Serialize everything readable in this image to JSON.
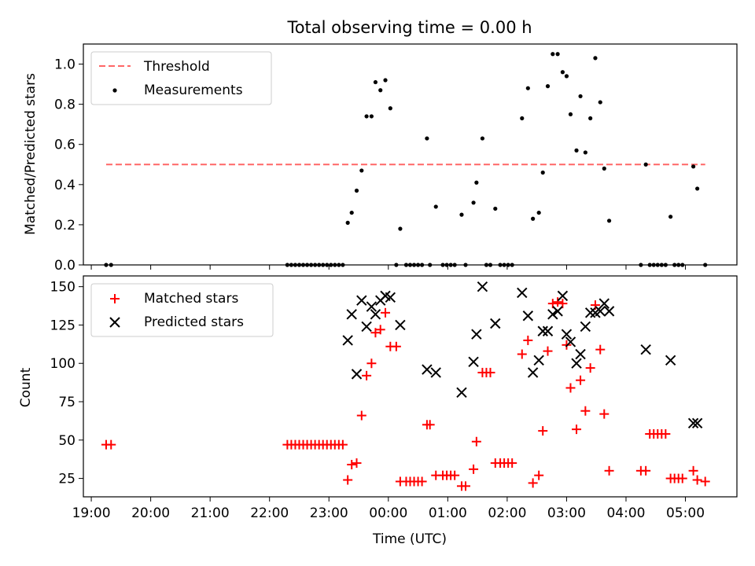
{
  "chart_data": [
    {
      "type": "scatter",
      "title": "Total observing time = 0.00 h",
      "xlabel": "",
      "ylabel": "Matched/Predicted stars",
      "xlim": [
        "18:52",
        "05:52"
      ],
      "ylim": [
        0,
        1.1
      ],
      "yticks": [
        "0.0",
        "0.2",
        "0.4",
        "0.6",
        "0.8",
        "1.0"
      ],
      "legend_position": "top-left",
      "series": [
        {
          "name": "Threshold",
          "kind": "dashed-line",
          "color": "#ff6666",
          "x": [
            "19:15",
            "05:20"
          ],
          "y": [
            0.5,
            0.5
          ]
        },
        {
          "name": "Measurements",
          "kind": "dot",
          "color": "#000000",
          "points": [
            [
              "19:15",
              0.0
            ],
            [
              "19:20",
              0.0
            ],
            [
              "22:18",
              0.0
            ],
            [
              "22:22",
              0.0
            ],
            [
              "22:26",
              0.0
            ],
            [
              "22:30",
              0.0
            ],
            [
              "22:34",
              0.0
            ],
            [
              "22:38",
              0.0
            ],
            [
              "22:42",
              0.0
            ],
            [
              "22:46",
              0.0
            ],
            [
              "22:50",
              0.0
            ],
            [
              "22:54",
              0.0
            ],
            [
              "22:58",
              0.0
            ],
            [
              "23:02",
              0.0
            ],
            [
              "23:06",
              0.0
            ],
            [
              "23:10",
              0.0
            ],
            [
              "23:14",
              0.0
            ],
            [
              "23:19",
              0.21
            ],
            [
              "23:23",
              0.26
            ],
            [
              "23:28",
              0.37
            ],
            [
              "23:33",
              0.47
            ],
            [
              "23:38",
              0.74
            ],
            [
              "23:43",
              0.74
            ],
            [
              "23:47",
              0.91
            ],
            [
              "23:52",
              0.87
            ],
            [
              "23:57",
              0.92
            ],
            [
              "00:02",
              0.78
            ],
            [
              "00:08",
              0.0
            ],
            [
              "00:12",
              0.18
            ],
            [
              "00:18",
              0.0
            ],
            [
              "00:22",
              0.0
            ],
            [
              "00:26",
              0.0
            ],
            [
              "00:30",
              0.0
            ],
            [
              "00:34",
              0.0
            ],
            [
              "00:39",
              0.63
            ],
            [
              "00:42",
              0.0
            ],
            [
              "00:48",
              0.29
            ],
            [
              "00:55",
              0.0
            ],
            [
              "00:59",
              0.0
            ],
            [
              "01:03",
              0.0
            ],
            [
              "01:07",
              0.0
            ],
            [
              "01:14",
              0.25
            ],
            [
              "01:18",
              0.0
            ],
            [
              "01:26",
              0.31
            ],
            [
              "01:29",
              0.41
            ],
            [
              "01:35",
              0.63
            ],
            [
              "01:39",
              0.0
            ],
            [
              "01:43",
              0.0
            ],
            [
              "01:48",
              0.28
            ],
            [
              "01:53",
              0.0
            ],
            [
              "01:57",
              0.0
            ],
            [
              "02:01",
              0.0
            ],
            [
              "02:05",
              0.0
            ],
            [
              "02:15",
              0.73
            ],
            [
              "02:21",
              0.88
            ],
            [
              "02:26",
              0.23
            ],
            [
              "02:32",
              0.26
            ],
            [
              "02:36",
              0.46
            ],
            [
              "02:41",
              0.89
            ],
            [
              "02:46",
              1.05
            ],
            [
              "02:51",
              1.05
            ],
            [
              "02:56",
              0.96
            ],
            [
              "03:00",
              0.94
            ],
            [
              "03:04",
              0.75
            ],
            [
              "03:10",
              0.57
            ],
            [
              "03:14",
              0.84
            ],
            [
              "03:19",
              0.56
            ],
            [
              "03:24",
              0.73
            ],
            [
              "03:29",
              1.03
            ],
            [
              "03:34",
              0.81
            ],
            [
              "03:38",
              0.48
            ],
            [
              "03:43",
              0.22
            ],
            [
              "04:15",
              0.0
            ],
            [
              "04:20",
              0.5
            ],
            [
              "04:24",
              0.0
            ],
            [
              "04:28",
              0.0
            ],
            [
              "04:32",
              0.0
            ],
            [
              "04:36",
              0.0
            ],
            [
              "04:40",
              0.0
            ],
            [
              "04:45",
              0.24
            ],
            [
              "04:49",
              0.0
            ],
            [
              "04:53",
              0.0
            ],
            [
              "04:57",
              0.0
            ],
            [
              "05:08",
              0.49
            ],
            [
              "05:12",
              0.38
            ],
            [
              "05:20",
              0.0
            ]
          ]
        }
      ]
    },
    {
      "type": "scatter",
      "title": "",
      "xlabel": "Time (UTC)",
      "ylabel": "Count",
      "xlim": [
        "18:52",
        "05:52"
      ],
      "ylim": [
        13,
        157
      ],
      "xticks": [
        "19:00",
        "20:00",
        "21:00",
        "22:00",
        "23:00",
        "00:00",
        "01:00",
        "02:00",
        "03:00",
        "04:00",
        "05:00"
      ],
      "yticks": [
        "25",
        "50",
        "75",
        "100",
        "125",
        "150"
      ],
      "legend_position": "top-left",
      "series": [
        {
          "name": "Matched stars",
          "marker": "plus",
          "color": "#ff0000",
          "points": [
            [
              "19:15",
              47
            ],
            [
              "19:20",
              47
            ],
            [
              "22:18",
              47
            ],
            [
              "22:22",
              47
            ],
            [
              "22:26",
              47
            ],
            [
              "22:30",
              47
            ],
            [
              "22:34",
              47
            ],
            [
              "22:38",
              47
            ],
            [
              "22:42",
              47
            ],
            [
              "22:46",
              47
            ],
            [
              "22:50",
              47
            ],
            [
              "22:54",
              47
            ],
            [
              "22:58",
              47
            ],
            [
              "23:02",
              47
            ],
            [
              "23:06",
              47
            ],
            [
              "23:10",
              47
            ],
            [
              "23:14",
              47
            ],
            [
              "23:19",
              24
            ],
            [
              "23:23",
              34
            ],
            [
              "23:28",
              35
            ],
            [
              "23:33",
              66
            ],
            [
              "23:38",
              92
            ],
            [
              "23:43",
              100
            ],
            [
              "23:47",
              120
            ],
            [
              "23:52",
              122
            ],
            [
              "23:57",
              133
            ],
            [
              "00:02",
              111
            ],
            [
              "00:08",
              111
            ],
            [
              "00:12",
              23
            ],
            [
              "00:18",
              23
            ],
            [
              "00:22",
              23
            ],
            [
              "00:26",
              23
            ],
            [
              "00:30",
              23
            ],
            [
              "00:34",
              23
            ],
            [
              "00:39",
              60
            ],
            [
              "00:42",
              60
            ],
            [
              "00:48",
              27
            ],
            [
              "00:55",
              27
            ],
            [
              "00:59",
              27
            ],
            [
              "01:03",
              27
            ],
            [
              "01:07",
              27
            ],
            [
              "01:14",
              20
            ],
            [
              "01:18",
              20
            ],
            [
              "01:26",
              31
            ],
            [
              "01:29",
              49
            ],
            [
              "01:35",
              94
            ],
            [
              "01:39",
              94
            ],
            [
              "01:43",
              94
            ],
            [
              "01:48",
              35
            ],
            [
              "01:53",
              35
            ],
            [
              "01:57",
              35
            ],
            [
              "02:01",
              35
            ],
            [
              "02:05",
              35
            ],
            [
              "02:15",
              106
            ],
            [
              "02:21",
              115
            ],
            [
              "02:26",
              22
            ],
            [
              "02:32",
              27
            ],
            [
              "02:36",
              56
            ],
            [
              "02:41",
              108
            ],
            [
              "02:46",
              139
            ],
            [
              "02:51",
              140
            ],
            [
              "02:56",
              139
            ],
            [
              "03:00",
              112
            ],
            [
              "03:04",
              84
            ],
            [
              "03:10",
              57
            ],
            [
              "03:14",
              89
            ],
            [
              "03:19",
              69
            ],
            [
              "03:24",
              97
            ],
            [
              "03:29",
              138
            ],
            [
              "03:34",
              109
            ],
            [
              "03:38",
              67
            ],
            [
              "03:43",
              30
            ],
            [
              "04:15",
              30
            ],
            [
              "04:20",
              30
            ],
            [
              "04:24",
              54
            ],
            [
              "04:28",
              54
            ],
            [
              "04:32",
              54
            ],
            [
              "04:36",
              54
            ],
            [
              "04:40",
              54
            ],
            [
              "04:45",
              25
            ],
            [
              "04:49",
              25
            ],
            [
              "04:53",
              25
            ],
            [
              "04:57",
              25
            ],
            [
              "05:08",
              30
            ],
            [
              "05:12",
              24
            ],
            [
              "05:20",
              23
            ]
          ]
        },
        {
          "name": "Predicted stars",
          "marker": "x",
          "color": "#000000",
          "points": [
            [
              "23:19",
              115
            ],
            [
              "23:23",
              132
            ],
            [
              "23:28",
              93
            ],
            [
              "23:33",
              141
            ],
            [
              "23:38",
              124
            ],
            [
              "23:43",
              137
            ],
            [
              "23:47",
              132
            ],
            [
              "23:52",
              141
            ],
            [
              "23:57",
              144
            ],
            [
              "00:02",
              143
            ],
            [
              "00:12",
              125
            ],
            [
              "00:39",
              96
            ],
            [
              "00:48",
              94
            ],
            [
              "01:14",
              81
            ],
            [
              "01:26",
              101
            ],
            [
              "01:29",
              119
            ],
            [
              "01:35",
              150
            ],
            [
              "01:48",
              126
            ],
            [
              "02:15",
              146
            ],
            [
              "02:21",
              131
            ],
            [
              "02:26",
              94
            ],
            [
              "02:32",
              102
            ],
            [
              "02:36",
              121
            ],
            [
              "02:41",
              121
            ],
            [
              "02:46",
              132
            ],
            [
              "02:51",
              134
            ],
            [
              "02:56",
              144
            ],
            [
              "03:00",
              119
            ],
            [
              "03:04",
              114
            ],
            [
              "03:10",
              100
            ],
            [
              "03:14",
              106
            ],
            [
              "03:19",
              124
            ],
            [
              "03:24",
              133
            ],
            [
              "03:29",
              133
            ],
            [
              "03:34",
              134
            ],
            [
              "03:38",
              139
            ],
            [
              "03:43",
              134
            ],
            [
              "04:20",
              109
            ],
            [
              "04:45",
              102
            ],
            [
              "05:08",
              61
            ],
            [
              "05:12",
              61
            ]
          ]
        }
      ]
    }
  ]
}
